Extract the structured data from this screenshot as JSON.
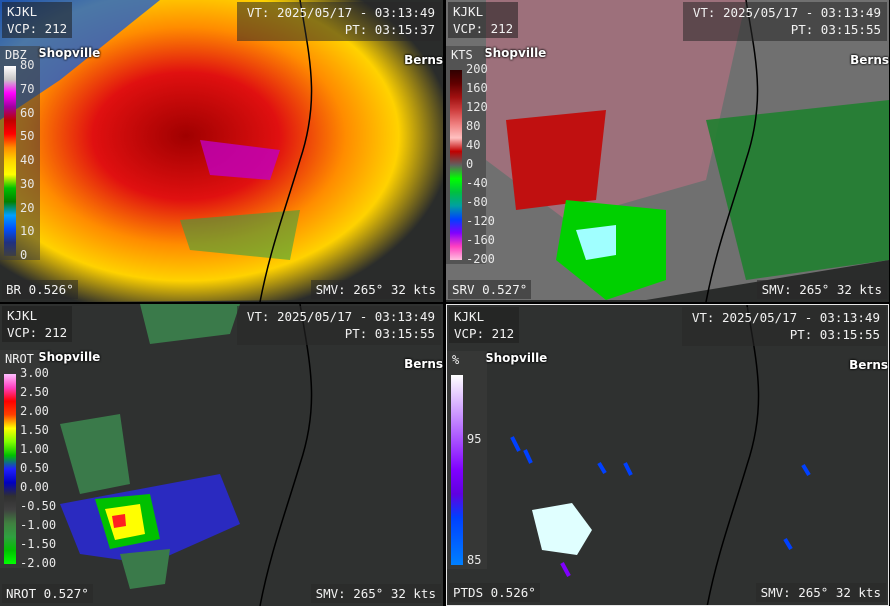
{
  "panels": [
    {
      "station": "KJKL",
      "vcp": "VCP: 212",
      "vt": "VT: 2025/05/17 - 03:13:49",
      "pt": "PT: 03:15:37",
      "product": "BR 0.526°",
      "smv": "SMV: 265° 32 kts",
      "city_left": "Shopville",
      "city_right": "Berns",
      "legend": {
        "unit": "DBZ",
        "ticks": [
          "80",
          "70",
          "60",
          "50",
          "40",
          "30",
          "20",
          "10",
          "0"
        ],
        "colors": [
          "#ffffff",
          "#c8c8c8",
          "#ff00ff",
          "#a000a0",
          "#c00000",
          "#ff0000",
          "#ff8c00",
          "#ffd700",
          "#ffff00",
          "#00c000",
          "#008000",
          "#00a0ff",
          "#0050ff",
          "#203080",
          "#404040"
        ]
      }
    },
    {
      "station": "KJKL",
      "vcp": "VCP: 212",
      "vt": "VT: 2025/05/17 - 03:13:49",
      "pt": "PT: 03:15:55",
      "product": "SRV 0.527°",
      "smv": "SMV: 265° 32 kts",
      "city_left": "Shopville",
      "city_right": "Berns",
      "legend": {
        "unit": "KTS",
        "ticks": [
          "200",
          "160",
          "120",
          "80",
          "40",
          "0",
          "-40",
          "-80",
          "-120",
          "-160",
          "-200"
        ],
        "colors": [
          "#300000",
          "#600000",
          "#a01010",
          "#d04040",
          "#f08080",
          "#ffc0c0",
          "#c00000",
          "#606060",
          "#00ff00",
          "#00c040",
          "#00a0a0",
          "#0040ff",
          "#8000ff",
          "#ff40c0",
          "#ffc0e0"
        ]
      }
    },
    {
      "station": "KJKL",
      "vcp": "VCP: 212",
      "vt": "VT: 2025/05/17 - 03:13:49",
      "pt": "PT: 03:15:55",
      "product": "NROT 0.527°",
      "smv": "SMV: 265° 32 kts",
      "city_left": "Shopville",
      "city_right": "Berns",
      "legend": {
        "unit": "NROT",
        "ticks": [
          "3.00",
          "2.50",
          "2.00",
          "1.50",
          "1.00",
          "0.50",
          "0.00",
          "-0.50",
          "-1.00",
          "-1.50",
          "-2.00"
        ],
        "colors": [
          "#ffc0ff",
          "#ff40c0",
          "#ff0000",
          "#ff4000",
          "#ffff00",
          "#80ff00",
          "#00c000",
          "#2020ff",
          "#0000c0",
          "#303030",
          "#404040",
          "#408040",
          "#30a040",
          "#00c000",
          "#00ff00"
        ]
      }
    },
    {
      "station": "KJKL",
      "vcp": "VCP: 212",
      "vt": "VT: 2025/05/17 - 03:13:49",
      "pt": "PT: 03:15:55",
      "product": "PTDS 0.526°",
      "smv": "SMV: 265° 32 kts",
      "city_left": "Shopville",
      "city_right": "Berns",
      "legend": {
        "unit": "%",
        "ticks": [
          "95",
          "85"
        ],
        "colors": [
          "#ffffff",
          "#e0c0ff",
          "#c080ff",
          "#a040ff",
          "#8000ff",
          "#6000e0",
          "#0040ff",
          "#0060ff",
          "#0080ff"
        ]
      }
    }
  ]
}
